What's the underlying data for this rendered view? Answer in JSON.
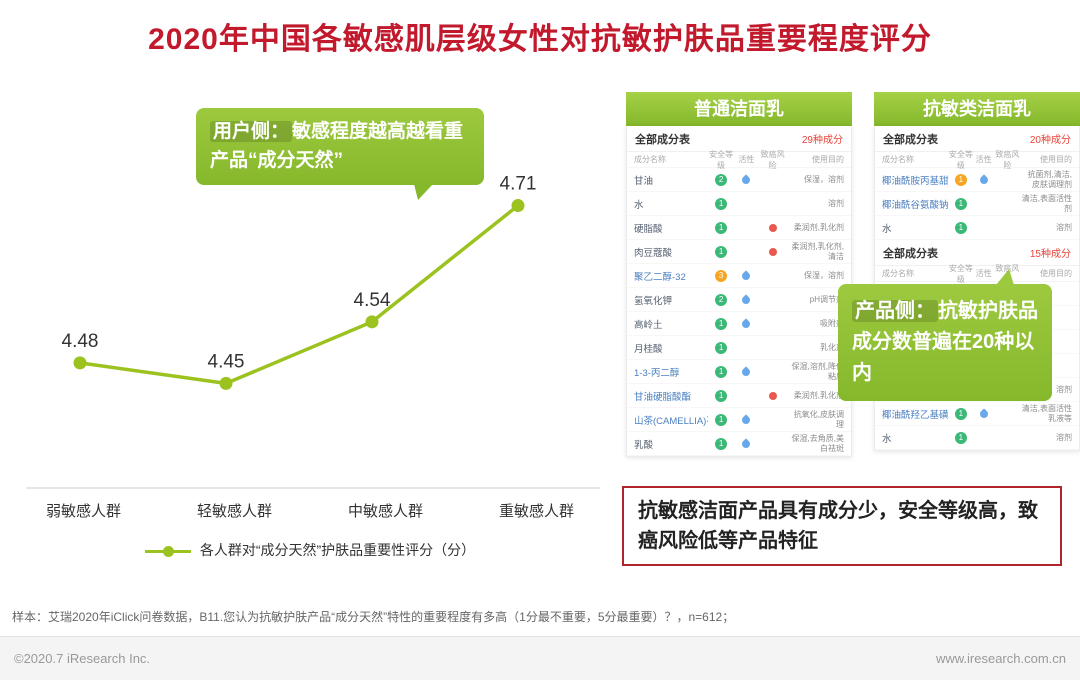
{
  "page": {
    "title": "2020年中国各敏感肌层级女性对抗敏护肤品重要程度评分",
    "footnote": "样本：艾瑞2020年iClick问卷数据，B11.您认为抗敏护肤产品“成分天然”特性的重要程度有多高（1分最不重要，5分最重要）？，n=612；",
    "footer_left": "©2020.7 iResearch Inc.",
    "footer_right": "www.iresearch.com.cn"
  },
  "chart_data": {
    "type": "line",
    "categories": [
      "弱敏感人群",
      "轻敏感人群",
      "中敏感人群",
      "重敏感人群"
    ],
    "values": [
      4.48,
      4.45,
      4.54,
      4.71
    ],
    "ylim": [
      4.3,
      4.8
    ],
    "legend": "各人群对“成分天然”护肤品重要性评分（分）",
    "line_color": "#9cc21f",
    "grid": false,
    "legend_marker": "line-dot-icon"
  },
  "callouts": {
    "user": {
      "lead": "用户侧：",
      "text": "敏感程度越高越看重产品“成分天然”"
    },
    "product": {
      "lead": "产品侧：",
      "text": "抗敏护肤品成分数普遍在20种以内"
    }
  },
  "summary_box": "抗敏感洁面产品具有成分少，安全等级高，致癌风险低等产品特征",
  "table_columns": [
    "成分名称",
    "安全等级",
    "活性",
    "致癌风险",
    "使用目的"
  ],
  "panels": [
    {
      "title": "普通洁面乳",
      "sections": [
        {
          "left": "全部成分表",
          "right": "29种成分",
          "show_cols": true,
          "rows": [
            {
              "name": "甘油",
              "safety": "2",
              "safety_color": "#3cb878",
              "active": true,
              "risk": false,
              "use": "保湿，溶剂"
            },
            {
              "name": "水",
              "safety": "1",
              "safety_color": "#3cb878",
              "active": false,
              "risk": false,
              "use": "溶剂"
            },
            {
              "name": "硬脂酸",
              "safety": "1",
              "safety_color": "#3cb878",
              "active": false,
              "risk": true,
              "use": "柔润剂,乳化剂"
            },
            {
              "name": "肉豆蔻酸",
              "safety": "1",
              "safety_color": "#3cb878",
              "active": false,
              "risk": true,
              "use": "柔润剂,乳化剂,清洁"
            },
            {
              "name": "聚乙二醇-32",
              "safety": "3",
              "safety_color": "#f5a623",
              "active": true,
              "risk": false,
              "use": "保湿，溶剂",
              "link": true
            },
            {
              "name": "氢氧化钾",
              "safety": "2",
              "safety_color": "#3cb878",
              "active": true,
              "risk": false,
              "use": "pH调节剂"
            },
            {
              "name": "高岭土",
              "safety": "1",
              "safety_color": "#3cb878",
              "active": true,
              "risk": false,
              "use": "吸附剂"
            },
            {
              "name": "月桂酸",
              "safety": "1",
              "safety_color": "#3cb878",
              "active": false,
              "risk": false,
              "use": "乳化剂"
            },
            {
              "name": "1-3-丙二醇",
              "safety": "1",
              "safety_color": "#3cb878",
              "active": true,
              "risk": false,
              "use": "保湿,溶剂,降低粘度",
              "link": true
            },
            {
              "name": "甘油硬脂酸酯",
              "safety": "1",
              "safety_color": "#3cb878",
              "active": false,
              "risk": true,
              "use": "柔润剂,乳化剂",
              "link": true
            },
            {
              "name": "山茶(CAMELLIA)花",
              "safety": "1",
              "safety_color": "#3cb878",
              "active": true,
              "risk": false,
              "use": "抗氧化,皮肤调理",
              "link": true
            },
            {
              "name": "乳酸",
              "safety": "1",
              "safety_color": "#3cb878",
              "active": true,
              "risk": false,
              "use": "保湿,去角质,美白祛斑"
            }
          ]
        }
      ]
    },
    {
      "title": "抗敏类洁面乳",
      "sections": [
        {
          "left": "全部成分表",
          "right": "20种成分",
          "show_cols": true,
          "rows": [
            {
              "name": "椰油酰胺丙基甜菜碱",
              "safety": "1",
              "safety_color": "#f5a623",
              "active": true,
              "risk": false,
              "use": "抗菌剂,清洁,皮肤调理剂",
              "link": true
            },
            {
              "name": "椰油酰谷氨酸钠",
              "safety": "1",
              "safety_color": "#3cb878",
              "active": false,
              "risk": false,
              "use": "清洁,表面活性剂",
              "link": true
            },
            {
              "name": "水",
              "safety": "1",
              "safety_color": "#3cb878",
              "active": false,
              "risk": false,
              "use": "溶剂"
            }
          ]
        },
        {
          "left": "全部成分表",
          "right": "15种成分",
          "show_cols": true,
          "rows": [
            {
              "spacer": true
            },
            {
              "spacer": true
            },
            {
              "spacer": true
            },
            {
              "spacer": true
            },
            {
              "name": "甘油",
              "safety": "2",
              "safety_color": "#3cb878",
              "active": true,
              "risk": false,
              "use": "保湿，溶剂"
            },
            {
              "name": "椰油酰羟乙基磺酸钠",
              "safety": "1",
              "safety_color": "#3cb878",
              "active": true,
              "risk": false,
              "use": "清洁,表面活性乳液等",
              "link": true
            },
            {
              "name": "水",
              "safety": "1",
              "safety_color": "#3cb878",
              "active": false,
              "risk": false,
              "use": "溶剂"
            }
          ]
        }
      ]
    }
  ]
}
